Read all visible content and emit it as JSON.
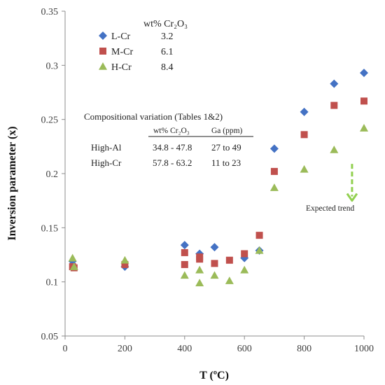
{
  "chart_data": {
    "type": "scatter",
    "xlabel": "T (ºC)",
    "ylabel": "Inversion parameter (x)",
    "xlim": [
      0,
      1000
    ],
    "ylim": [
      0.05,
      0.35
    ],
    "xticks": [
      0,
      200,
      400,
      600,
      800,
      1000
    ],
    "xtick_labels": [
      "0",
      "200",
      "400",
      "600",
      "800",
      "1000"
    ],
    "yticks": [
      0.05,
      0.1,
      0.15,
      0.2,
      0.25,
      0.3,
      0.35
    ],
    "ytick_labels": [
      "0.05",
      "0.1",
      "0.15",
      "0.2",
      "0.25",
      "0.3",
      "0.35"
    ],
    "grid": false,
    "legend_position": "top-left",
    "legend_header": "wt% Cr₂O₃",
    "series": [
      {
        "name": "L-Cr",
        "legend_value": "3.2",
        "marker": "diamond",
        "color": "#4472C4",
        "points": [
          [
            25,
            0.119
          ],
          [
            200,
            0.114
          ],
          [
            400,
            0.134
          ],
          [
            450,
            0.126
          ],
          [
            500,
            0.132
          ],
          [
            600,
            0.122
          ],
          [
            650,
            0.129
          ],
          [
            700,
            0.223
          ],
          [
            800,
            0.257
          ],
          [
            900,
            0.283
          ],
          [
            1000,
            0.293
          ]
        ]
      },
      {
        "name": "M-Cr",
        "legend_value": "6.1",
        "marker": "square",
        "color": "#C0504D",
        "points": [
          [
            25,
            0.114
          ],
          [
            30,
            0.113
          ],
          [
            200,
            0.116
          ],
          [
            400,
            0.116
          ],
          [
            400,
            0.127
          ],
          [
            450,
            0.121
          ],
          [
            450,
            0.123
          ],
          [
            500,
            0.117
          ],
          [
            550,
            0.12
          ],
          [
            600,
            0.126
          ],
          [
            650,
            0.143
          ],
          [
            700,
            0.202
          ],
          [
            800,
            0.236
          ],
          [
            900,
            0.263
          ],
          [
            1000,
            0.267
          ]
        ]
      },
      {
        "name": "H-Cr",
        "legend_value": "8.4",
        "marker": "triangle",
        "color": "#9BBB59",
        "points": [
          [
            25,
            0.122
          ],
          [
            30,
            0.114
          ],
          [
            200,
            0.12
          ],
          [
            400,
            0.106
          ],
          [
            450,
            0.111
          ],
          [
            450,
            0.099
          ],
          [
            500,
            0.106
          ],
          [
            550,
            0.101
          ],
          [
            600,
            0.111
          ],
          [
            650,
            0.129
          ],
          [
            700,
            0.187
          ],
          [
            800,
            0.204
          ],
          [
            900,
            0.222
          ],
          [
            1000,
            0.242
          ]
        ]
      }
    ],
    "annotations": {
      "table_title": "Compositional variation (Tables 1&2)",
      "table_headers": [
        "wt% Cr₂O₃",
        "Ga (ppm)"
      ],
      "table_rows": [
        {
          "label": "High-Al",
          "cr2o3": "34.8 - 47.8",
          "ga": "27 to 49"
        },
        {
          "label": "High-Cr",
          "cr2o3": "57.8 - 63.2",
          "ga": "11 to 23"
        }
      ],
      "trend_label": "Expected trend",
      "trend_arrow": {
        "x": 960,
        "y_from": 0.209,
        "y_to": 0.175,
        "color": "#92D050"
      }
    }
  }
}
